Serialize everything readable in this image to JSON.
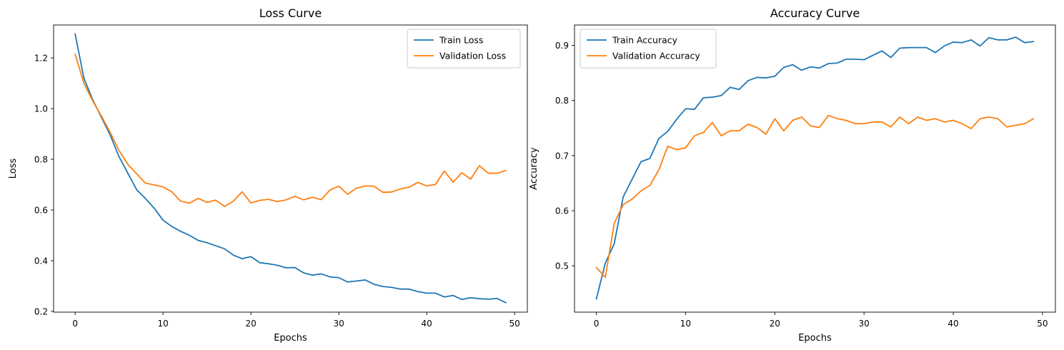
{
  "chart_data": [
    {
      "type": "line",
      "title": "Loss Curve",
      "xlabel": "Epochs",
      "ylabel": "Loss",
      "xlim": [
        -2.45,
        51.45
      ],
      "ylim": [
        0.197,
        1.33
      ],
      "xticks": [
        0,
        10,
        20,
        30,
        40,
        50
      ],
      "yticks": [
        0.2,
        0.4,
        0.6,
        0.8,
        1.0,
        1.2
      ],
      "ytick_labels": [
        "0.2",
        "0.4",
        "0.6",
        "0.8",
        "1.0",
        "1.2"
      ],
      "grid": false,
      "legend": "top-right",
      "x": [
        0,
        1,
        2,
        3,
        4,
        5,
        6,
        7,
        8,
        9,
        10,
        11,
        12,
        13,
        14,
        15,
        16,
        17,
        18,
        19,
        20,
        21,
        22,
        23,
        24,
        25,
        26,
        27,
        28,
        29,
        30,
        31,
        32,
        33,
        34,
        35,
        36,
        37,
        38,
        39,
        40,
        41,
        42,
        43,
        44,
        45,
        46,
        47,
        48,
        49
      ],
      "series": [
        {
          "name": "Train Loss",
          "color": "#1f77b4",
          "values": [
            1.295,
            1.12,
            1.035,
            0.965,
            0.895,
            0.81,
            0.745,
            0.68,
            0.645,
            0.607,
            0.56,
            0.535,
            0.516,
            0.5,
            0.48,
            0.471,
            0.459,
            0.447,
            0.422,
            0.408,
            0.416,
            0.392,
            0.388,
            0.382,
            0.372,
            0.373,
            0.352,
            0.343,
            0.348,
            0.336,
            0.333,
            0.316,
            0.32,
            0.324,
            0.307,
            0.298,
            0.295,
            0.288,
            0.288,
            0.278,
            0.272,
            0.272,
            0.257,
            0.263,
            0.247,
            0.254,
            0.25,
            0.248,
            0.251,
            0.234
          ]
        },
        {
          "name": "Validation Loss",
          "color": "#ff7f0e",
          "values": [
            1.215,
            1.1,
            1.03,
            0.97,
            0.905,
            0.835,
            0.78,
            0.743,
            0.706,
            0.699,
            0.691,
            0.672,
            0.635,
            0.627,
            0.646,
            0.63,
            0.639,
            0.614,
            0.635,
            0.672,
            0.628,
            0.638,
            0.642,
            0.633,
            0.64,
            0.654,
            0.64,
            0.65,
            0.641,
            0.679,
            0.694,
            0.662,
            0.686,
            0.695,
            0.694,
            0.67,
            0.671,
            0.683,
            0.69,
            0.709,
            0.695,
            0.701,
            0.754,
            0.71,
            0.747,
            0.722,
            0.775,
            0.745,
            0.745,
            0.756
          ]
        }
      ]
    },
    {
      "type": "line",
      "title": "Accuracy Curve",
      "xlabel": "Epochs",
      "ylabel": "Accuracy",
      "xlim": [
        -2.45,
        51.45
      ],
      "ylim": [
        0.416,
        0.937
      ],
      "xticks": [
        0,
        10,
        20,
        30,
        40,
        50
      ],
      "yticks": [
        0.5,
        0.6,
        0.7,
        0.8,
        0.9
      ],
      "ytick_labels": [
        "0.5",
        "0.6",
        "0.7",
        "0.8",
        "0.9"
      ],
      "grid": false,
      "legend": "top-left",
      "x": [
        0,
        1,
        2,
        3,
        4,
        5,
        6,
        7,
        8,
        9,
        10,
        11,
        12,
        13,
        14,
        15,
        16,
        17,
        18,
        19,
        20,
        21,
        22,
        23,
        24,
        25,
        26,
        27,
        28,
        29,
        30,
        31,
        32,
        33,
        34,
        35,
        36,
        37,
        38,
        39,
        40,
        41,
        42,
        43,
        44,
        45,
        46,
        47,
        48,
        49
      ],
      "series": [
        {
          "name": "Train Accuracy",
          "color": "#1f77b4",
          "values": [
            0.44,
            0.505,
            0.54,
            0.625,
            0.657,
            0.689,
            0.695,
            0.731,
            0.744,
            0.766,
            0.785,
            0.784,
            0.805,
            0.806,
            0.809,
            0.824,
            0.82,
            0.836,
            0.842,
            0.841,
            0.844,
            0.86,
            0.865,
            0.855,
            0.861,
            0.859,
            0.867,
            0.868,
            0.875,
            0.875,
            0.874,
            0.882,
            0.89,
            0.878,
            0.895,
            0.896,
            0.896,
            0.896,
            0.887,
            0.899,
            0.906,
            0.905,
            0.91,
            0.899,
            0.914,
            0.91,
            0.91,
            0.915,
            0.905,
            0.907
          ]
        },
        {
          "name": "Validation Accuracy",
          "color": "#ff7f0e",
          "values": [
            0.497,
            0.479,
            0.577,
            0.611,
            0.621,
            0.636,
            0.646,
            0.674,
            0.717,
            0.711,
            0.714,
            0.736,
            0.742,
            0.76,
            0.736,
            0.745,
            0.745,
            0.757,
            0.751,
            0.739,
            0.767,
            0.745,
            0.764,
            0.77,
            0.754,
            0.751,
            0.773,
            0.767,
            0.764,
            0.758,
            0.758,
            0.761,
            0.761,
            0.752,
            0.77,
            0.758,
            0.77,
            0.764,
            0.767,
            0.761,
            0.764,
            0.758,
            0.749,
            0.767,
            0.77,
            0.767,
            0.752,
            0.755,
            0.758,
            0.767
          ]
        }
      ]
    }
  ]
}
